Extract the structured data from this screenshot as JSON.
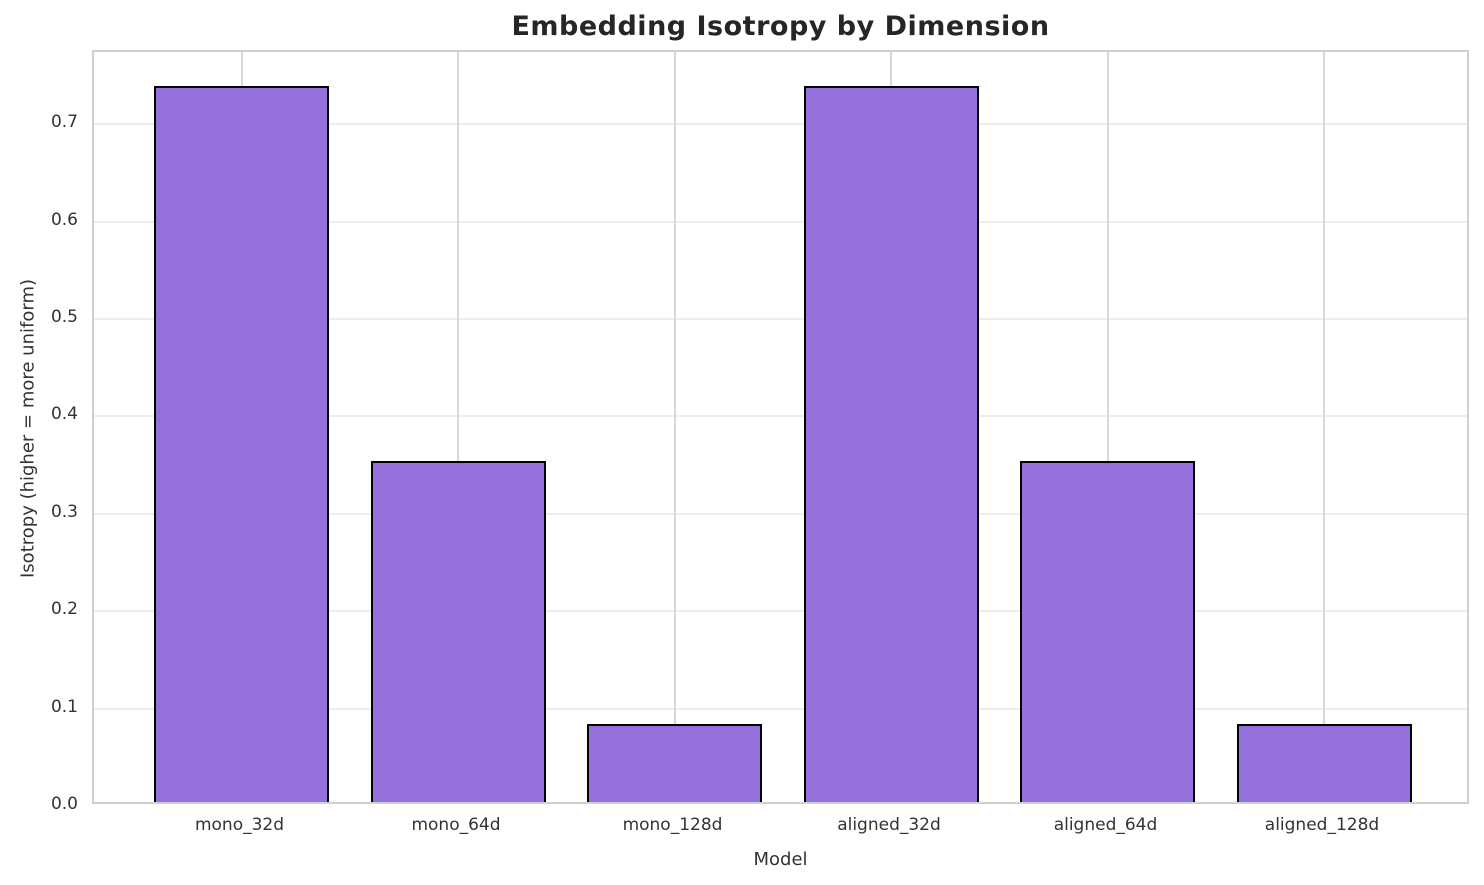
{
  "chart_data": {
    "type": "bar",
    "title": "Embedding Isotropy by Dimension",
    "xlabel": "Model",
    "ylabel": "Isotropy (higher = more uniform)",
    "categories": [
      "mono_32d",
      "mono_64d",
      "mono_128d",
      "aligned_32d",
      "aligned_64d",
      "aligned_128d"
    ],
    "values": [
      0.735,
      0.35,
      0.08,
      0.735,
      0.35,
      0.08
    ],
    "yticks": [
      0.0,
      0.1,
      0.2,
      0.3,
      0.4,
      0.5,
      0.6,
      0.7
    ],
    "ylim": [
      0,
      0.774
    ],
    "grid": true,
    "legend_position": "none",
    "colors": {
      "bar_fill": "#9370DB",
      "bar_edge": "#000000",
      "grid_horizontal": "#ededed",
      "grid_vertical": "#d8d8d8",
      "spine": "#d0d0d0",
      "tick_text": "#333333",
      "title_text": "#262626",
      "background": "#ffffff"
    }
  }
}
